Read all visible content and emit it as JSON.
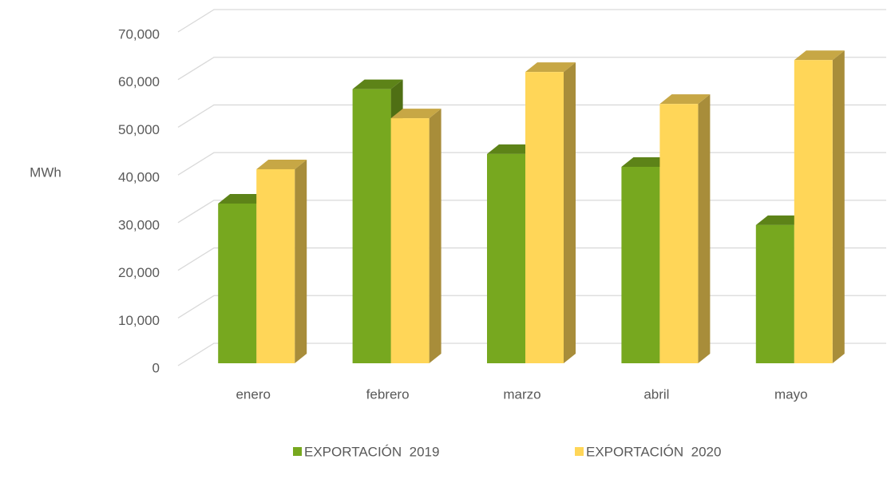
{
  "chart_data": {
    "type": "bar3d",
    "ylabel": "MWh",
    "categories": [
      "enero",
      "febrero",
      "marzo",
      "abril",
      "mayo"
    ],
    "series": [
      {
        "name": "EXPORTACIÓN  2019",
        "color": "#77a81f",
        "values": [
          33500,
          57500,
          43900,
          41200,
          29000
        ]
      },
      {
        "name": "EXPORTACIÓN  2020",
        "color": "#ffd658",
        "values": [
          40700,
          51400,
          61100,
          54400,
          63600
        ]
      }
    ],
    "ylim": [
      0,
      70000
    ],
    "yticks": [
      {
        "value": 0,
        "label": "0"
      },
      {
        "value": 10000,
        "label": "10,000"
      },
      {
        "value": 20000,
        "label": "20,000"
      },
      {
        "value": 30000,
        "label": "30,000"
      },
      {
        "value": 40000,
        "label": "40,000"
      },
      {
        "value": 50000,
        "label": "50,000"
      },
      {
        "value": 60000,
        "label": "60,000"
      },
      {
        "value": 70000,
        "label": "70,000"
      }
    ],
    "grid": true
  }
}
